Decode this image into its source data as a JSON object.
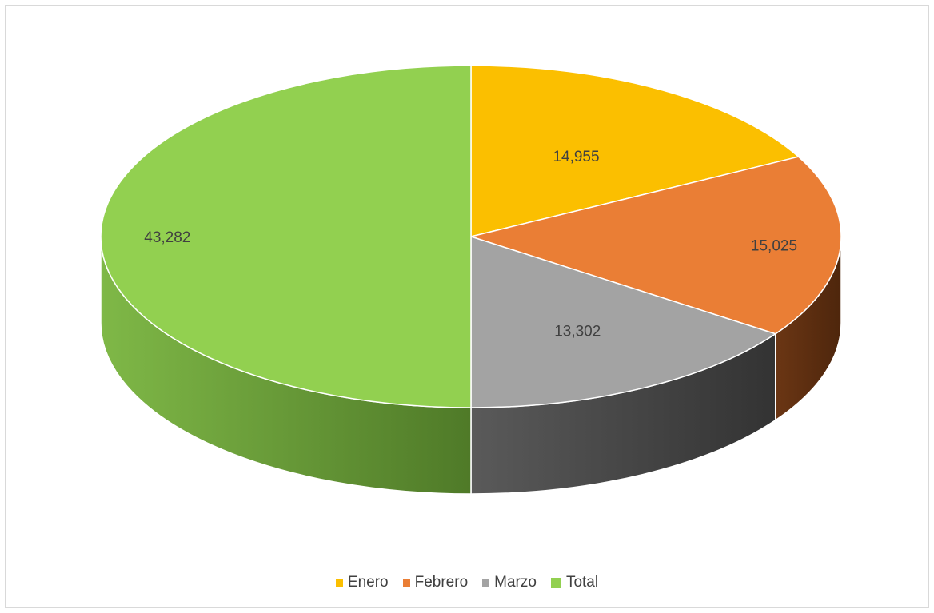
{
  "chart_data": {
    "type": "pie",
    "style": "3d",
    "title": "",
    "categories": [
      "Enero",
      "Febrero",
      "Marzo",
      "Total"
    ],
    "values": [
      14955,
      15025,
      13302,
      43282
    ],
    "data_labels": [
      "14,955",
      "15,025",
      "13,302",
      "43,282"
    ],
    "colors": {
      "Enero": {
        "top": "#fbbf00",
        "side": "#8a6400"
      },
      "Febrero": {
        "top": "#ea7e35",
        "side": "#5e2f10"
      },
      "Marzo": {
        "top": "#a3a3a3",
        "side": "#3c3c3c"
      },
      "Total": {
        "top": "#92d050",
        "side": "#5a8a2e"
      }
    },
    "legend_position": "bottom",
    "legend": [
      {
        "label": "Enero",
        "color": "#fbbf00"
      },
      {
        "label": "Febrero",
        "color": "#ea7e35"
      },
      {
        "label": "Marzo",
        "color": "#a3a3a3"
      },
      {
        "label": "Total",
        "color": "#92d050"
      }
    ]
  }
}
